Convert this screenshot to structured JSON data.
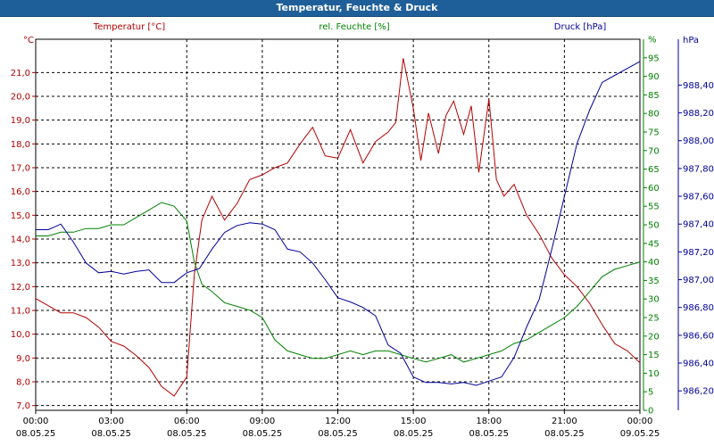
{
  "window": {
    "title": "Temperatur, Feuchte & Druck"
  },
  "colors": {
    "temperature": "#b30000",
    "humidity": "#008000",
    "pressure": "#000099",
    "title_bar": "#1f5f99",
    "grid": "#000000"
  },
  "chart_data": {
    "type": "line",
    "title": "Temperatur, Feuchte & Druck",
    "x_tick_labels": [
      [
        "00:00",
        "08.05.25"
      ],
      [
        "03:00",
        "08.05.25"
      ],
      [
        "06:00",
        "08.05.25"
      ],
      [
        "09:00",
        "08.05.25"
      ],
      [
        "12:00",
        "08.05.25"
      ],
      [
        "15:00",
        "08.05.25"
      ],
      [
        "18:00",
        "08.05.25"
      ],
      [
        "21:00",
        "08.05.25"
      ],
      [
        "00:00",
        "09.05.25"
      ]
    ],
    "x_range_hours": [
      0,
      24
    ],
    "grid": true,
    "axes": {
      "temperature": {
        "side": "left",
        "unit": "°C",
        "range": [
          6.8,
          22.4
        ],
        "ticks": [
          "7,0",
          "8,0",
          "9,0",
          "10,0",
          "11,0",
          "12,0",
          "13,0",
          "14,0",
          "15,0",
          "16,0",
          "17,0",
          "18,0",
          "19,0",
          "20,0",
          "21,0"
        ]
      },
      "humidity": {
        "side": "right",
        "unit": "%",
        "range": [
          0,
          100
        ],
        "ticks": [
          "0",
          "5",
          "10",
          "15",
          "20",
          "25",
          "30",
          "35",
          "40",
          "45",
          "50",
          "55",
          "60",
          "65",
          "70",
          "75",
          "80",
          "85",
          "90",
          "95",
          "%"
        ]
      },
      "pressure": {
        "side": "right",
        "unit": "hPa",
        "range": [
          986.06,
          988.73
        ],
        "ticks": [
          "986,20",
          "986,40",
          "986,60",
          "986,80",
          "987,00",
          "987,20",
          "987,40",
          "987,60",
          "987,80",
          "988,00",
          "988,20",
          "988,40",
          "hPa"
        ]
      }
    },
    "series": [
      {
        "name": "Temperatur [°C]",
        "axis": "temperature",
        "x": [
          0,
          0.5,
          1,
          1.5,
          2,
          2.5,
          3,
          3.5,
          4,
          4.5,
          5,
          5.5,
          6,
          6.3,
          6.6,
          7,
          7.5,
          8,
          8.5,
          9,
          9.5,
          10,
          10.5,
          11,
          11.5,
          12,
          12.5,
          13,
          13.5,
          14,
          14.3,
          14.6,
          15,
          15.3,
          15.6,
          16,
          16.3,
          16.6,
          17,
          17.3,
          17.6,
          18,
          18.3,
          18.6,
          19,
          19.5,
          20,
          20.5,
          21,
          21.5,
          22,
          22.5,
          23,
          23.5,
          24
        ],
        "values": [
          11.5,
          11.2,
          10.9,
          10.9,
          10.7,
          10.3,
          9.7,
          9.5,
          9.1,
          8.6,
          7.8,
          7.4,
          8.2,
          12.5,
          14.8,
          15.8,
          14.8,
          15.5,
          16.5,
          16.7,
          17.0,
          17.2,
          18.0,
          18.7,
          17.5,
          17.4,
          18.6,
          17.2,
          18.1,
          18.5,
          18.9,
          21.6,
          19.5,
          17.3,
          19.3,
          17.6,
          19.2,
          19.8,
          18.4,
          19.6,
          16.8,
          19.9,
          16.5,
          15.8,
          16.3,
          15.0,
          14.2,
          13.2,
          12.5,
          12.0,
          11.3,
          10.4,
          9.6,
          9.3,
          8.8
        ]
      },
      {
        "name": "rel. Feuchte [%]",
        "axis": "humidity",
        "x": [
          0,
          0.5,
          1,
          1.5,
          2,
          2.5,
          3,
          3.5,
          4,
          4.5,
          5,
          5.5,
          6,
          6.3,
          6.6,
          7,
          7.5,
          8,
          8.5,
          9,
          9.5,
          10,
          10.5,
          11,
          11.5,
          12,
          12.5,
          13,
          13.5,
          14,
          14.5,
          15,
          15.5,
          16,
          16.5,
          17,
          17.5,
          18,
          18.5,
          19,
          19.5,
          20,
          20.5,
          21,
          21.5,
          22,
          22.5,
          23,
          23.5,
          24
        ],
        "values": [
          47,
          47,
          48,
          48,
          49,
          49,
          50,
          50,
          52,
          54,
          56,
          55,
          51,
          40,
          34,
          32,
          29,
          28,
          27,
          25,
          19,
          16,
          15,
          14,
          14,
          15,
          16,
          15,
          16,
          16,
          15,
          14,
          13,
          14,
          15,
          13,
          14,
          15,
          16,
          18,
          19,
          21,
          23,
          25,
          28,
          32,
          36,
          38,
          39,
          40
        ],
        "note_index": 0
      },
      {
        "name": "Druck [hPa]",
        "axis": "pressure",
        "x": [
          0,
          0.5,
          1,
          1.5,
          2,
          2.5,
          3,
          3.5,
          4,
          4.5,
          5,
          5.5,
          6,
          6.5,
          7,
          7.5,
          8,
          8.5,
          9,
          9.5,
          10,
          10.5,
          11,
          11.5,
          12,
          12.5,
          13,
          13.5,
          14,
          14.5,
          15,
          15.5,
          16,
          16.5,
          17,
          17.5,
          18,
          18.5,
          19,
          19.5,
          20,
          20.5,
          21,
          21.5,
          22,
          22.5,
          23,
          23.5,
          24
        ],
        "values": [
          987.36,
          987.36,
          987.4,
          987.27,
          987.12,
          987.05,
          987.06,
          987.04,
          987.06,
          987.07,
          986.98,
          986.98,
          987.05,
          987.08,
          987.22,
          987.34,
          987.39,
          987.41,
          987.4,
          987.36,
          987.22,
          987.2,
          987.12,
          987.0,
          986.87,
          986.84,
          986.8,
          986.74,
          986.53,
          986.47,
          986.3,
          986.26,
          986.26,
          986.25,
          986.26,
          986.24,
          986.27,
          986.3,
          986.44,
          986.66,
          986.86,
          987.22,
          987.6,
          987.98,
          988.22,
          988.42,
          988.47,
          988.52,
          988.57
        ]
      }
    ],
    "legend": {
      "placement": "top",
      "entries": [
        "Temperatur [°C]",
        "rel. Feuchte [%]",
        "Druck [hPa]"
      ]
    }
  }
}
